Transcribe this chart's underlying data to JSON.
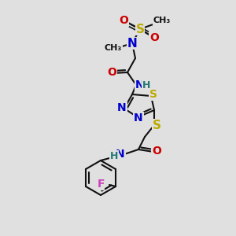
{
  "background_color": "#e0e0e0",
  "bond_color": "#111111",
  "bond_width": 1.5,
  "atom_colors": {
    "C": "#111111",
    "N": "#0000cc",
    "O": "#cc0000",
    "S": "#bbaa00",
    "F": "#cc44bb",
    "H": "#227777"
  },
  "figsize": [
    3.0,
    3.0
  ],
  "dpi": 100
}
